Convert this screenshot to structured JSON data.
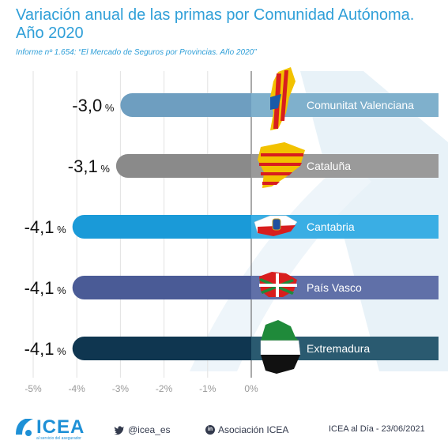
{
  "header": {
    "title": "Variación anual de las primas por Comunidad Autónoma. Año 2020",
    "subtitle": "Informe nº 1.654: “El Mercado de Seguros por Provincias. Año 2020”"
  },
  "chart_data": {
    "type": "bar",
    "orientation": "horizontal",
    "categories": [
      "Comunitat Valenciana",
      "Cataluña",
      "Cantabria",
      "País Vasco",
      "Extremadura"
    ],
    "values": [
      -3.0,
      -3.1,
      -4.1,
      -4.1,
      -4.1
    ],
    "value_labels": [
      "-3,0",
      "-3,1",
      "-4,1",
      "-4,1",
      "-4,1"
    ],
    "value_unit": "%",
    "xlim": [
      -5,
      0
    ],
    "xticks": [
      "-5%",
      "-4%",
      "-3%",
      "-2%",
      "-1%",
      "0%"
    ],
    "bar_colors": [
      "#6e9ec0",
      "#8a8a8a",
      "#1a9ad8",
      "#4a5b96",
      "#0f3650"
    ],
    "extension_colors": [
      "#7fb0cc",
      "#9a9a9a",
      "#3aaee4",
      "#6070a8",
      "#2a5a70"
    ],
    "grid": true,
    "legend": "none"
  },
  "footer": {
    "logo": "ICEA",
    "logo_tagline": "al servicio del asegurador",
    "twitter_icon": "twitter-bird-icon",
    "twitter": "@icea_es",
    "linkedin_icon": "linkedin-icon",
    "linkedin": "Asociación ICEA",
    "date": "ICEA al Día - 23/06/2021"
  }
}
